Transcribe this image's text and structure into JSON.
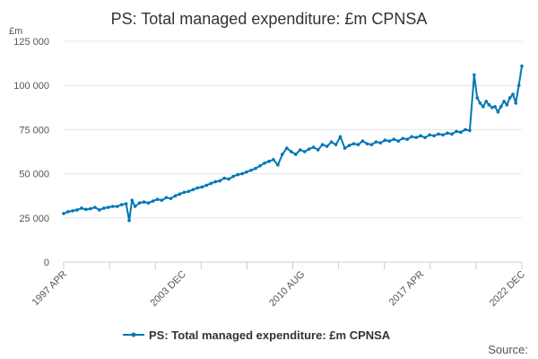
{
  "chart_data": {
    "type": "line",
    "title": "PS: Total managed expenditure: £m CPNSA",
    "ylabel": "£m",
    "xlabel": "",
    "ylim": [
      0,
      125000
    ],
    "yticks": [
      0,
      25000,
      50000,
      75000,
      100000,
      125000
    ],
    "ytick_labels": [
      "0",
      "25 000",
      "50 000",
      "75 000",
      "100 000",
      "125 000"
    ],
    "xlim": [
      1997.25,
      2022.92
    ],
    "xtick_labels": [
      {
        "label": "1997 APR",
        "x": 1997.25
      },
      {
        "label": "2003 DEC",
        "x": 2003.92
      },
      {
        "label": "2010 AUG",
        "x": 2010.58
      },
      {
        "label": "2017 APR",
        "x": 2017.25
      },
      {
        "label": "2022 DEC",
        "x": 2022.92
      }
    ],
    "grid": true,
    "legend": "bottom-center",
    "colors": {
      "series": "#0077b6",
      "grid": "#e6e6e6",
      "axis": "#cccccc"
    },
    "series": [
      {
        "name": "PS: Total managed expenditure: £m CPNSA",
        "points": [
          [
            1997.25,
            27500
          ],
          [
            1997.5,
            28500
          ],
          [
            1997.75,
            29000
          ],
          [
            1998.0,
            29500
          ],
          [
            1998.25,
            30500
          ],
          [
            1998.5,
            29800
          ],
          [
            1998.75,
            30200
          ],
          [
            1999.0,
            31000
          ],
          [
            1999.25,
            29500
          ],
          [
            1999.5,
            30500
          ],
          [
            1999.75,
            31000
          ],
          [
            2000.0,
            31500
          ],
          [
            2000.25,
            31500
          ],
          [
            2000.5,
            32500
          ],
          [
            2000.75,
            33000
          ],
          [
            2000.92,
            23500
          ],
          [
            2001.08,
            35000
          ],
          [
            2001.25,
            31500
          ],
          [
            2001.5,
            33500
          ],
          [
            2001.75,
            34000
          ],
          [
            2002.0,
            33500
          ],
          [
            2002.25,
            34500
          ],
          [
            2002.5,
            35500
          ],
          [
            2002.75,
            35000
          ],
          [
            2003.0,
            36500
          ],
          [
            2003.25,
            36000
          ],
          [
            2003.5,
            37500
          ],
          [
            2003.75,
            38500
          ],
          [
            2004.0,
            39500
          ],
          [
            2004.25,
            40000
          ],
          [
            2004.5,
            41000
          ],
          [
            2004.75,
            42000
          ],
          [
            2005.0,
            42500
          ],
          [
            2005.25,
            43500
          ],
          [
            2005.5,
            44500
          ],
          [
            2005.75,
            45500
          ],
          [
            2006.0,
            46000
          ],
          [
            2006.25,
            47500
          ],
          [
            2006.5,
            47000
          ],
          [
            2006.75,
            48500
          ],
          [
            2007.0,
            49500
          ],
          [
            2007.25,
            50000
          ],
          [
            2007.5,
            51000
          ],
          [
            2007.75,
            52000
          ],
          [
            2008.0,
            53000
          ],
          [
            2008.25,
            54500
          ],
          [
            2008.5,
            56000
          ],
          [
            2008.75,
            57000
          ],
          [
            2009.0,
            58000
          ],
          [
            2009.25,
            55000
          ],
          [
            2009.5,
            61000
          ],
          [
            2009.75,
            64500
          ],
          [
            2010.0,
            62500
          ],
          [
            2010.25,
            61000
          ],
          [
            2010.5,
            63500
          ],
          [
            2010.75,
            62500
          ],
          [
            2011.0,
            64000
          ],
          [
            2011.25,
            65000
          ],
          [
            2011.5,
            63500
          ],
          [
            2011.75,
            66500
          ],
          [
            2012.0,
            65500
          ],
          [
            2012.25,
            68000
          ],
          [
            2012.5,
            66500
          ],
          [
            2012.75,
            71000
          ],
          [
            2013.0,
            64500
          ],
          [
            2013.25,
            66000
          ],
          [
            2013.5,
            67000
          ],
          [
            2013.75,
            66500
          ],
          [
            2014.0,
            68500
          ],
          [
            2014.25,
            67000
          ],
          [
            2014.5,
            66500
          ],
          [
            2014.75,
            68000
          ],
          [
            2015.0,
            67500
          ],
          [
            2015.25,
            69000
          ],
          [
            2015.5,
            68500
          ],
          [
            2015.75,
            69500
          ],
          [
            2016.0,
            68500
          ],
          [
            2016.25,
            70000
          ],
          [
            2016.5,
            69500
          ],
          [
            2016.75,
            71000
          ],
          [
            2017.0,
            70500
          ],
          [
            2017.25,
            71500
          ],
          [
            2017.5,
            70500
          ],
          [
            2017.75,
            72000
          ],
          [
            2018.0,
            71500
          ],
          [
            2018.25,
            72500
          ],
          [
            2018.5,
            72000
          ],
          [
            2018.75,
            73000
          ],
          [
            2019.0,
            72500
          ],
          [
            2019.25,
            74000
          ],
          [
            2019.5,
            73500
          ],
          [
            2019.75,
            75000
          ],
          [
            2020.0,
            74500
          ],
          [
            2020.25,
            106000
          ],
          [
            2020.42,
            93000
          ],
          [
            2020.58,
            90000
          ],
          [
            2020.75,
            88000
          ],
          [
            2020.92,
            91000
          ],
          [
            2021.08,
            89000
          ],
          [
            2021.25,
            87500
          ],
          [
            2021.42,
            88000
          ],
          [
            2021.58,
            85000
          ],
          [
            2021.75,
            88000
          ],
          [
            2021.92,
            91000
          ],
          [
            2022.08,
            89000
          ],
          [
            2022.25,
            93000
          ],
          [
            2022.42,
            95000
          ],
          [
            2022.58,
            90000
          ],
          [
            2022.75,
            100000
          ],
          [
            2022.92,
            111000
          ]
        ]
      }
    ]
  },
  "source_label": "Source:"
}
